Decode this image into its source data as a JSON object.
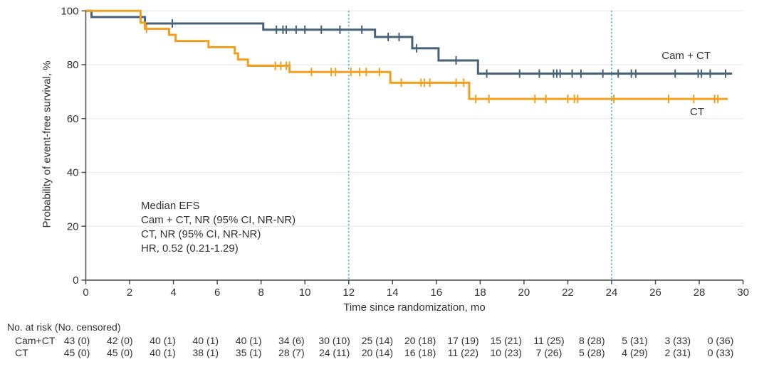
{
  "figure": {
    "y_axis_title": "Probability of event-free survival, %",
    "x_axis_title": "Time since randomization, mo",
    "curve_label_camct": "Cam + CT",
    "curve_label_ct": "CT"
  },
  "chart_data": {
    "type": "line",
    "subtype": "kaplan-meier-step",
    "title": "",
    "xlabel": "Time since randomization, mo",
    "ylabel": "Probability of event-free survival, %",
    "xlim": [
      0,
      30
    ],
    "ylim": [
      0,
      100
    ],
    "xticks": [
      0,
      2,
      4,
      6,
      8,
      10,
      12,
      14,
      16,
      18,
      20,
      22,
      24,
      26,
      28,
      30
    ],
    "yticks": [
      0,
      20,
      40,
      60,
      80,
      100
    ],
    "grid": "horizontal",
    "reference_lines_x": [
      12,
      24
    ],
    "annotation": [
      "Median EFS",
      "Cam + CT, NR (95% CI, NR-NR)",
      "CT, NR (95% CI, NR-NR)",
      "HR, 0.52 (0.21-1.29)"
    ],
    "series": [
      {
        "id": "cam-ct",
        "name": "Cam + CT",
        "color": "#466178",
        "steps": [
          [
            0,
            100
          ],
          [
            0.26,
            97.7
          ],
          [
            2.7,
            95.3
          ],
          [
            8.1,
            93.0
          ],
          [
            13.2,
            90.3
          ],
          [
            14.9,
            86.1
          ],
          [
            16.1,
            81.6
          ],
          [
            17.9,
            76.7
          ]
        ],
        "end": 29.5,
        "censors": [
          [
            3.95,
            95.3
          ],
          [
            8.7,
            93.0
          ],
          [
            9.0,
            93.0
          ],
          [
            9.15,
            93.0
          ],
          [
            9.6,
            93.0
          ],
          [
            10.0,
            93.0
          ],
          [
            10.75,
            93.0
          ],
          [
            11.6,
            93.0
          ],
          [
            12.6,
            93.0
          ],
          [
            13.8,
            90.3
          ],
          [
            14.3,
            90.3
          ],
          [
            15.1,
            86.1
          ],
          [
            16.9,
            81.6
          ],
          [
            18.3,
            76.7
          ],
          [
            19.8,
            76.7
          ],
          [
            20.7,
            76.7
          ],
          [
            21.35,
            76.7
          ],
          [
            21.5,
            76.7
          ],
          [
            21.65,
            76.7
          ],
          [
            22.2,
            76.7
          ],
          [
            22.6,
            76.7
          ],
          [
            23.6,
            76.7
          ],
          [
            24.3,
            76.7
          ],
          [
            24.9,
            76.7
          ],
          [
            25.1,
            76.7
          ],
          [
            26.9,
            76.7
          ],
          [
            27.95,
            76.7
          ],
          [
            28.1,
            76.7
          ],
          [
            28.5,
            76.7
          ],
          [
            29.2,
            76.7
          ]
        ]
      },
      {
        "id": "ct",
        "name": "CT",
        "color": "#F0A01E",
        "steps": [
          [
            0,
            100
          ],
          [
            2.5,
            95.6
          ],
          [
            2.7,
            93.3
          ],
          [
            3.8,
            91.1
          ],
          [
            4.1,
            88.8
          ],
          [
            5.6,
            86.5
          ],
          [
            6.8,
            84.2
          ],
          [
            6.95,
            81.9
          ],
          [
            7.4,
            79.6
          ],
          [
            9.3,
            77.3
          ],
          [
            13.9,
            73.3
          ],
          [
            17.5,
            67.3
          ]
        ],
        "end": 29.3,
        "censors": [
          [
            2.77,
            93.3
          ],
          [
            8.65,
            79.6
          ],
          [
            8.9,
            79.6
          ],
          [
            9.15,
            79.6
          ],
          [
            9.3,
            79.6
          ],
          [
            10.3,
            77.3
          ],
          [
            11.2,
            77.3
          ],
          [
            11.4,
            77.3
          ],
          [
            12.1,
            77.3
          ],
          [
            12.5,
            77.3
          ],
          [
            12.8,
            77.3
          ],
          [
            13.4,
            77.3
          ],
          [
            14.4,
            73.3
          ],
          [
            15.3,
            73.3
          ],
          [
            15.45,
            73.3
          ],
          [
            15.7,
            73.3
          ],
          [
            16.9,
            73.3
          ],
          [
            17.25,
            73.3
          ],
          [
            17.8,
            67.3
          ],
          [
            18.4,
            67.3
          ],
          [
            20.5,
            67.3
          ],
          [
            21.0,
            67.3
          ],
          [
            22.0,
            67.3
          ],
          [
            22.3,
            67.3
          ],
          [
            22.45,
            67.3
          ],
          [
            24.1,
            67.3
          ],
          [
            26.6,
            67.3
          ],
          [
            27.75,
            67.3
          ],
          [
            28.7,
            67.3
          ],
          [
            28.85,
            67.3
          ]
        ]
      }
    ],
    "style": {
      "grid_color": "#EAEAEA",
      "axis_color": "#4C4C4E",
      "text_color": "#323232",
      "reference_color": "#41B4DC",
      "background": "#FFFFFF"
    }
  },
  "risk_table": {
    "header": "No. at risk (No. censored)",
    "times": [
      0,
      2,
      4,
      6,
      8,
      10,
      12,
      14,
      16,
      18,
      20,
      22,
      24,
      26,
      28,
      30
    ],
    "rows": [
      {
        "label": "Cam+CT",
        "values": [
          "43 (0)",
          "42 (0)",
          "40 (1)",
          "40 (1)",
          "40 (1)",
          "34 (6)",
          "30 (10)",
          "25 (14)",
          "20 (18)",
          "17 (19)",
          "15 (21)",
          "11 (25)",
          "8 (28)",
          "5 (31)",
          "3 (33)",
          "0 (36)"
        ]
      },
      {
        "label": "CT",
        "values": [
          "45 (0)",
          "45 (0)",
          "40 (1)",
          "38 (1)",
          "35 (1)",
          "28 (7)",
          "24 (11)",
          "20 (14)",
          "16 (18)",
          "11 (22)",
          "10 (23)",
          "7 (26)",
          "5 (28)",
          "4 (29)",
          "2 (31)",
          "0 (33)"
        ]
      }
    ]
  }
}
